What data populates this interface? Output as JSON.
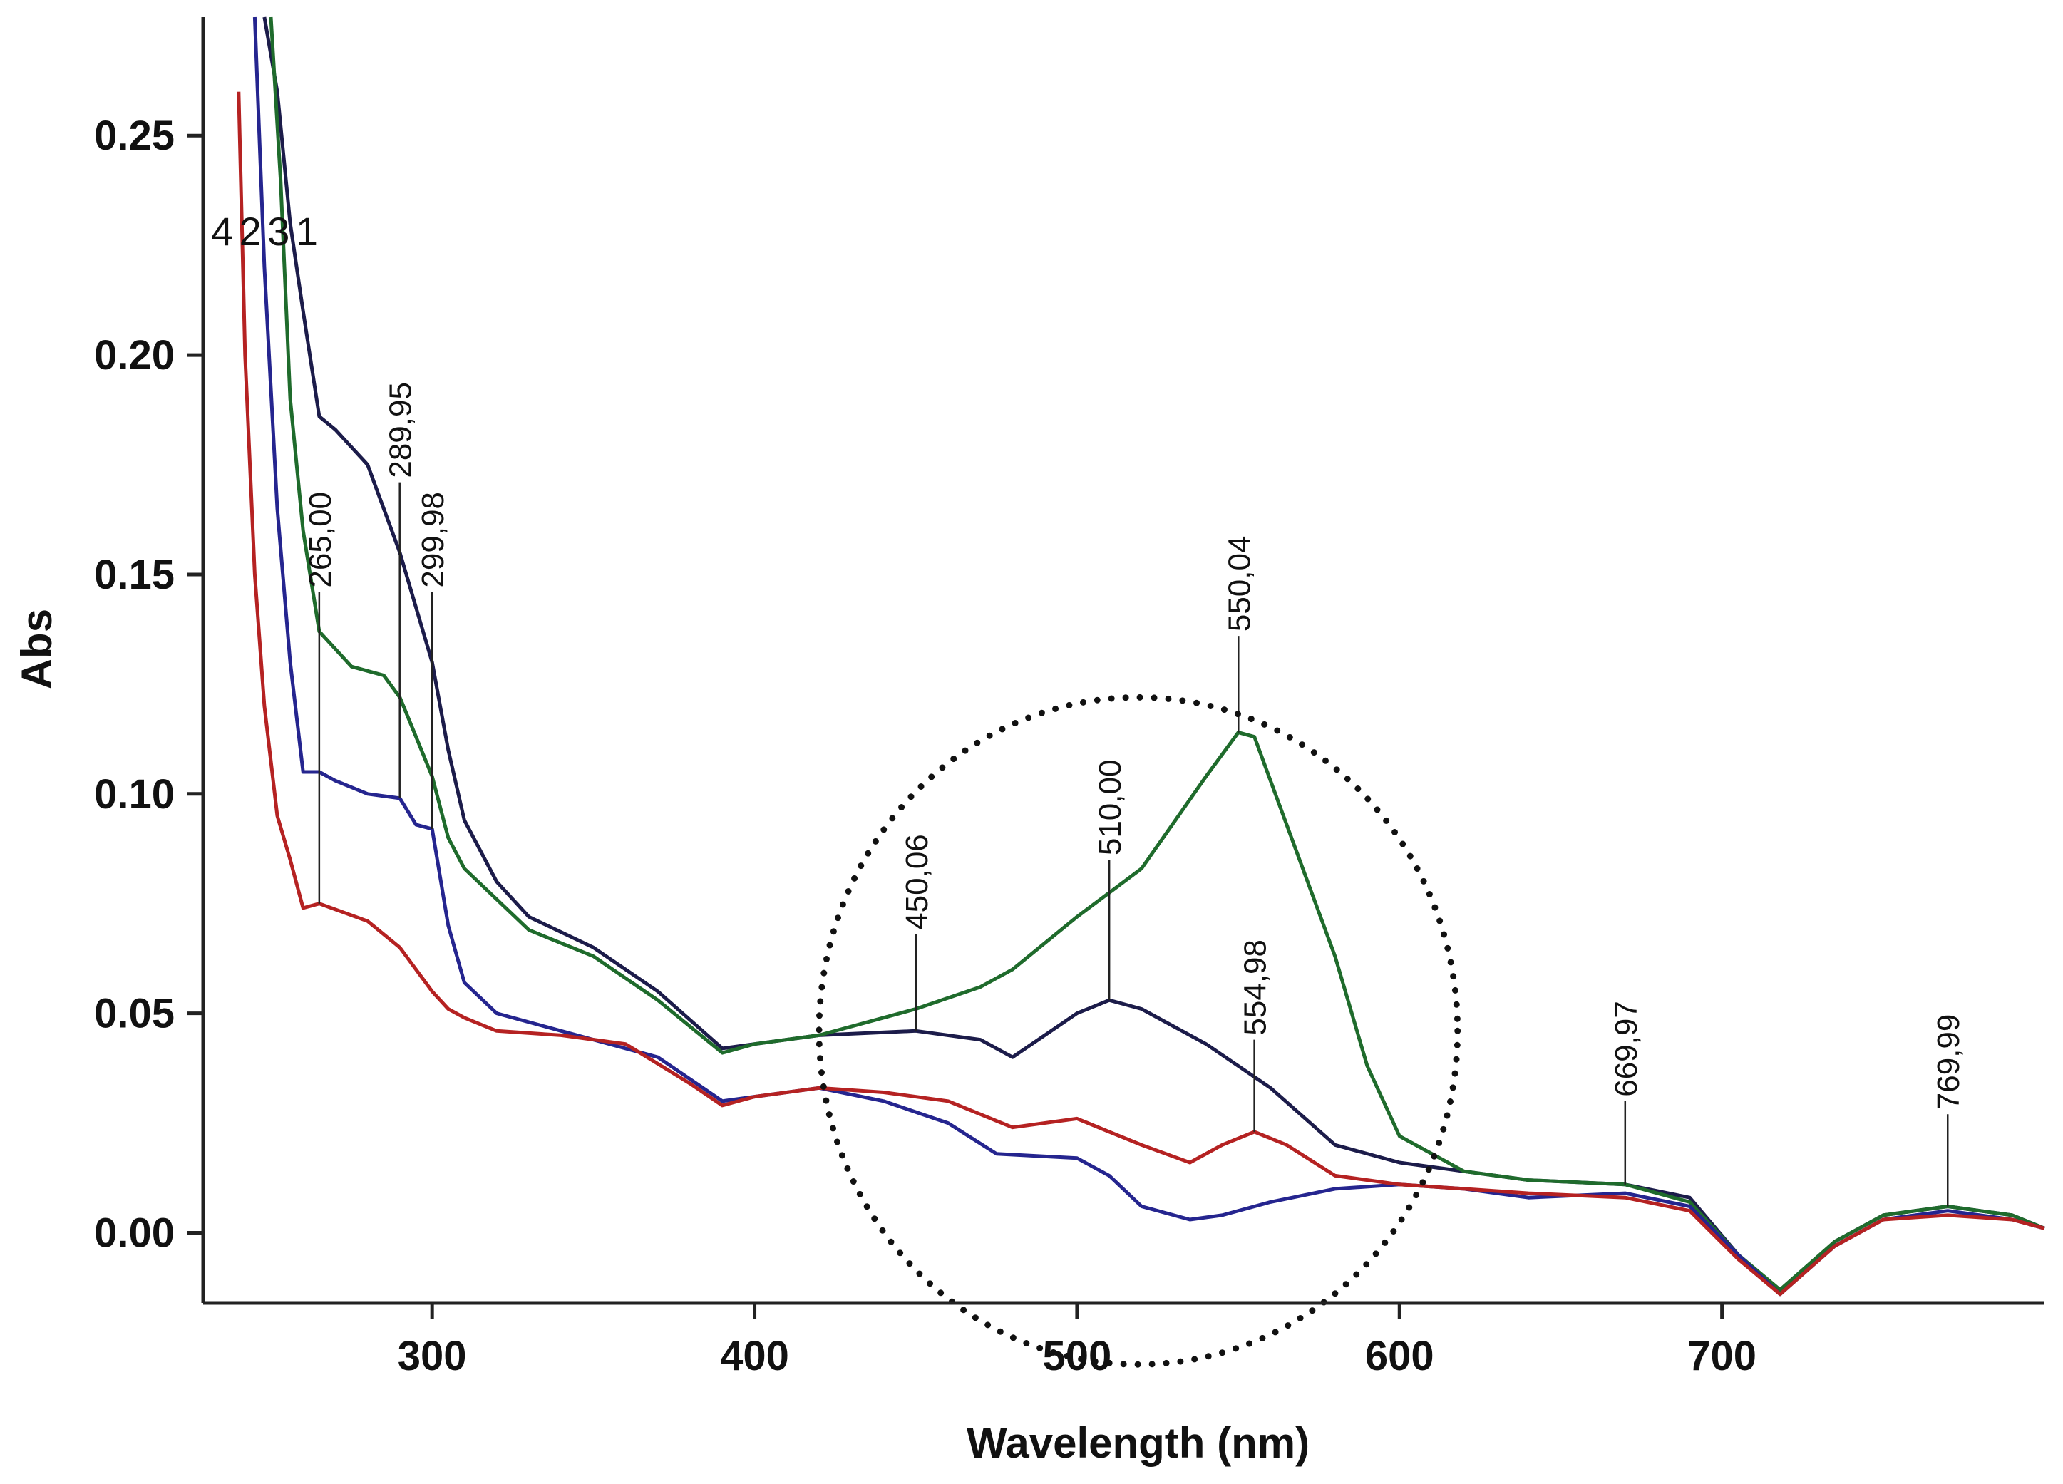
{
  "chart_data": {
    "type": "line",
    "title": "",
    "xlabel": "Wavelength (nm)",
    "ylabel": "Abs",
    "xlim": [
      229,
      800
    ],
    "ylim": [
      -0.016,
      0.277
    ],
    "xticks": [
      300,
      400,
      500,
      600,
      700
    ],
    "yticks": [
      0.0,
      0.05,
      0.1,
      0.15,
      0.2,
      0.25
    ],
    "ytick_labels": [
      "0.00",
      "0.05",
      "0.10",
      "0.15",
      "0.20",
      "0.25"
    ],
    "curve_id_labels": "4231",
    "series": [
      {
        "name": "1",
        "color": "#1c1c4a",
        "x": [
          248,
          252,
          256,
          260,
          265,
          270,
          280,
          290,
          300,
          305,
          310,
          320,
          330,
          350,
          370,
          390,
          400,
          420,
          450,
          470,
          480,
          500,
          510,
          520,
          540,
          560,
          580,
          600,
          620,
          640,
          670,
          690,
          705,
          718,
          735,
          750,
          770,
          790,
          800
        ],
        "y": [
          0.277,
          0.26,
          0.23,
          0.21,
          0.186,
          0.183,
          0.175,
          0.155,
          0.13,
          0.11,
          0.094,
          0.08,
          0.072,
          0.065,
          0.055,
          0.042,
          0.043,
          0.045,
          0.046,
          0.044,
          0.04,
          0.05,
          0.053,
          0.051,
          0.043,
          0.033,
          0.02,
          0.016,
          0.014,
          0.012,
          0.011,
          0.008,
          -0.005,
          -0.014,
          -0.002,
          0.004,
          0.006,
          0.004,
          0.001
        ]
      },
      {
        "name": "2",
        "color": "#1f6b2c",
        "x": [
          250,
          253,
          256,
          260,
          265,
          275,
          285,
          290,
          295,
          300,
          305,
          310,
          330,
          350,
          370,
          390,
          400,
          420,
          450,
          470,
          480,
          500,
          520,
          540,
          550,
          555,
          565,
          580,
          590,
          600,
          620,
          640,
          670,
          690,
          705,
          718,
          735,
          750,
          770,
          790,
          800
        ],
        "y": [
          0.277,
          0.24,
          0.19,
          0.16,
          0.137,
          0.129,
          0.127,
          0.122,
          0.113,
          0.104,
          0.09,
          0.083,
          0.069,
          0.063,
          0.053,
          0.041,
          0.043,
          0.045,
          0.051,
          0.056,
          0.06,
          0.072,
          0.083,
          0.104,
          0.114,
          0.113,
          0.093,
          0.063,
          0.038,
          0.022,
          0.014,
          0.012,
          0.011,
          0.007,
          -0.005,
          -0.013,
          -0.002,
          0.004,
          0.006,
          0.004,
          0.001
        ]
      },
      {
        "name": "3",
        "color": "#25258f",
        "x": [
          245,
          248,
          252,
          256,
          260,
          265,
          270,
          280,
          290,
          295,
          300,
          305,
          310,
          320,
          340,
          370,
          390,
          400,
          420,
          440,
          460,
          475,
          500,
          510,
          520,
          535,
          545,
          560,
          580,
          600,
          620,
          640,
          670,
          690,
          705,
          718,
          735,
          750,
          770,
          790,
          800
        ],
        "y": [
          0.277,
          0.22,
          0.165,
          0.13,
          0.105,
          0.105,
          0.103,
          0.1,
          0.099,
          0.093,
          0.092,
          0.07,
          0.057,
          0.05,
          0.046,
          0.04,
          0.03,
          0.031,
          0.033,
          0.03,
          0.025,
          0.018,
          0.017,
          0.013,
          0.006,
          0.003,
          0.004,
          0.007,
          0.01,
          0.011,
          0.01,
          0.008,
          0.009,
          0.006,
          -0.005,
          -0.014,
          -0.003,
          0.003,
          0.005,
          0.003,
          0.001
        ]
      },
      {
        "name": "4",
        "color": "#b52222",
        "x": [
          240,
          242,
          245,
          248,
          252,
          256,
          260,
          265,
          280,
          290,
          300,
          305,
          310,
          320,
          340,
          360,
          380,
          390,
          400,
          420,
          440,
          460,
          480,
          500,
          510,
          520,
          535,
          545,
          555,
          565,
          580,
          600,
          620,
          640,
          670,
          690,
          705,
          718,
          735,
          750,
          770,
          790,
          800
        ],
        "y": [
          0.26,
          0.2,
          0.15,
          0.12,
          0.095,
          0.085,
          0.074,
          0.075,
          0.071,
          0.065,
          0.055,
          0.051,
          0.049,
          0.046,
          0.045,
          0.043,
          0.034,
          0.029,
          0.031,
          0.033,
          0.032,
          0.03,
          0.024,
          0.026,
          0.023,
          0.02,
          0.016,
          0.02,
          0.023,
          0.02,
          0.013,
          0.011,
          0.01,
          0.009,
          0.008,
          0.005,
          -0.006,
          -0.014,
          -0.003,
          0.003,
          0.004,
          0.003,
          0.001
        ]
      }
    ],
    "annotations": [
      {
        "text": "265,00",
        "x": 265.0,
        "y_from": 0.075,
        "y_to": 0.146
      },
      {
        "text": "289,95",
        "x": 289.95,
        "y_from": 0.099,
        "y_to": 0.171
      },
      {
        "text": "299,98",
        "x": 299.98,
        "y_from": 0.092,
        "y_to": 0.146
      },
      {
        "text": "450,06",
        "x": 450.06,
        "y_from": 0.046,
        "y_to": 0.068
      },
      {
        "text": "510,00",
        "x": 510.0,
        "y_from": 0.053,
        "y_to": 0.085
      },
      {
        "text": "550,04",
        "x": 550.04,
        "y_from": 0.114,
        "y_to": 0.136
      },
      {
        "text": "554,98",
        "x": 554.98,
        "y_from": 0.023,
        "y_to": 0.044
      },
      {
        "text": "669,97",
        "x": 669.97,
        "y_from": 0.011,
        "y_to": 0.03
      },
      {
        "text": "769,99",
        "x": 769.99,
        "y_from": 0.006,
        "y_to": 0.027
      }
    ],
    "highlight": {
      "shape": "dotted-ellipse",
      "center": [
        519,
        0.046
      ],
      "radius": [
        99,
        0.076
      ]
    }
  }
}
